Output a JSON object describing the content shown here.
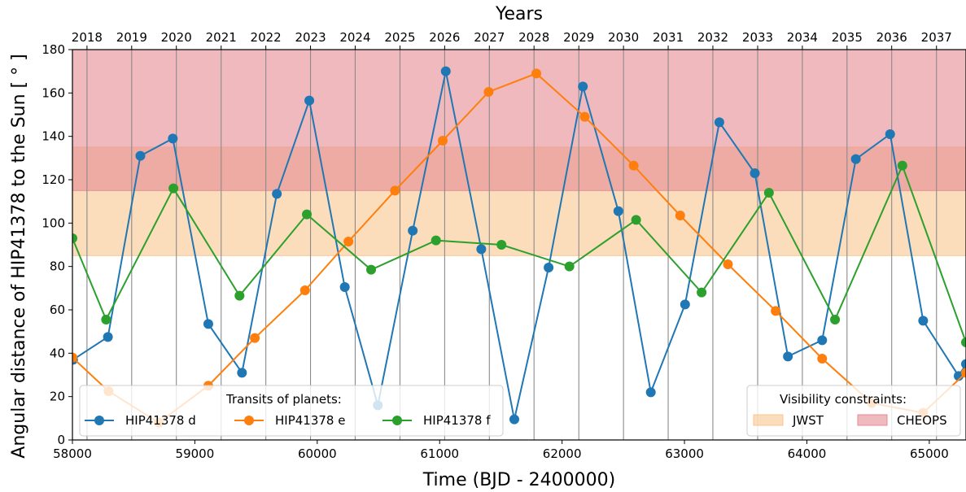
{
  "chart_data": {
    "type": "line",
    "title": "",
    "xlabel": "Time (BJD - 2400000)",
    "ylabel": "Angular distance of HIP41378 to the Sun [$^\\circ$]",
    "ylabel_display": "Angular distance of HIP41378 to the Sun [ ° ]",
    "top_xlabel": "Years",
    "xlim": [
      58000,
      65300
    ],
    "ylim": [
      0,
      180
    ],
    "x_ticks": [
      58000,
      59000,
      60000,
      61000,
      62000,
      63000,
      64000,
      65000
    ],
    "x_tick_labels": [
      "58000",
      "59000",
      "60000",
      "61000",
      "62000",
      "63000",
      "64000",
      "65000"
    ],
    "y_ticks": [
      0,
      20,
      40,
      60,
      80,
      100,
      120,
      140,
      160,
      180
    ],
    "y_tick_labels": [
      "0",
      "20",
      "40",
      "60",
      "80",
      "100",
      "120",
      "140",
      "160",
      "180"
    ],
    "year_ticks": [
      {
        "year": "2018",
        "x": 58119
      },
      {
        "year": "2019",
        "x": 58484
      },
      {
        "year": "2020",
        "x": 58849
      },
      {
        "year": "2021",
        "x": 59215
      },
      {
        "year": "2022",
        "x": 59580
      },
      {
        "year": "2023",
        "x": 59945
      },
      {
        "year": "2024",
        "x": 60310
      },
      {
        "year": "2025",
        "x": 60676
      },
      {
        "year": "2026",
        "x": 61041
      },
      {
        "year": "2027",
        "x": 61406
      },
      {
        "year": "2028",
        "x": 61771
      },
      {
        "year": "2029",
        "x": 62137
      },
      {
        "year": "2030",
        "x": 62502
      },
      {
        "year": "2031",
        "x": 62867
      },
      {
        "year": "2032",
        "x": 63232
      },
      {
        "year": "2033",
        "x": 63598
      },
      {
        "year": "2034",
        "x": 63963
      },
      {
        "year": "2035",
        "x": 64328
      },
      {
        "year": "2036",
        "x": 64693
      },
      {
        "year": "2037",
        "x": 65059
      }
    ],
    "grid": "vertical lines at year boundaries",
    "bands": [
      {
        "name": "JWST",
        "y_range": [
          85,
          135
        ],
        "color": "#f9c48e"
      },
      {
        "name": "CHEOPS",
        "y_range": [
          115,
          180
        ],
        "color": "#e68a93"
      }
    ],
    "series": [
      {
        "name": "HIP41378 d",
        "color": "#1f77b4",
        "points": [
          [
            58005,
            37
          ],
          [
            58290,
            47.5
          ],
          [
            58555,
            131
          ],
          [
            58820,
            139
          ],
          [
            59110,
            53.5
          ],
          [
            59385,
            31
          ],
          [
            59670,
            113.5
          ],
          [
            59935,
            156.5
          ],
          [
            60225,
            70.5
          ],
          [
            60495,
            16
          ],
          [
            60780,
            96.5
          ],
          [
            61050,
            170
          ],
          [
            61340,
            88
          ],
          [
            61610,
            9.5
          ],
          [
            61890,
            79.5
          ],
          [
            62170,
            163
          ],
          [
            62460,
            105.5
          ],
          [
            62725,
            22
          ],
          [
            63005,
            62.5
          ],
          [
            63285,
            146.5
          ],
          [
            63575,
            123
          ],
          [
            63845,
            38.5
          ],
          [
            64125,
            46
          ],
          [
            64400,
            129.5
          ],
          [
            64680,
            141
          ],
          [
            64950,
            55
          ],
          [
            65240,
            29.5
          ],
          [
            65300,
            35
          ]
        ]
      },
      {
        "name": "HIP41378 e",
        "color": "#ff7f0e",
        "points": [
          [
            58000,
            38
          ],
          [
            58295,
            22.5
          ],
          [
            58705,
            8
          ],
          [
            59110,
            25
          ],
          [
            59490,
            47
          ],
          [
            59900,
            69
          ],
          [
            60255,
            91.5
          ],
          [
            60635,
            115
          ],
          [
            61025,
            138
          ],
          [
            61400,
            160.5
          ],
          [
            61790,
            169
          ],
          [
            62185,
            149
          ],
          [
            62585,
            126.5
          ],
          [
            62965,
            103.5
          ],
          [
            63355,
            81
          ],
          [
            63745,
            59.5
          ],
          [
            64125,
            37.5
          ],
          [
            64530,
            17
          ],
          [
            64950,
            12.5
          ],
          [
            65300,
            31
          ]
        ]
      },
      {
        "name": "HIP41378 f",
        "color": "#2ca02c",
        "points": [
          [
            58000,
            93
          ],
          [
            58275,
            55.5
          ],
          [
            58825,
            116
          ],
          [
            59365,
            66.5
          ],
          [
            59915,
            104
          ],
          [
            60440,
            78.5
          ],
          [
            60970,
            92
          ],
          [
            61505,
            90
          ],
          [
            62060,
            80
          ],
          [
            62605,
            101.5
          ],
          [
            63140,
            68
          ],
          [
            63690,
            114
          ],
          [
            64230,
            55.5
          ],
          [
            64780,
            126.5
          ],
          [
            65300,
            45
          ]
        ]
      }
    ],
    "legends": [
      {
        "title": "Transits of planets:",
        "entries": [
          "HIP41378 d",
          "HIP41378 e",
          "HIP41378 f"
        ],
        "placement": "lower-left"
      },
      {
        "title": "Visibility constraints:",
        "entries": [
          "JWST",
          "CHEOPS"
        ],
        "placement": "lower-right"
      }
    ]
  }
}
